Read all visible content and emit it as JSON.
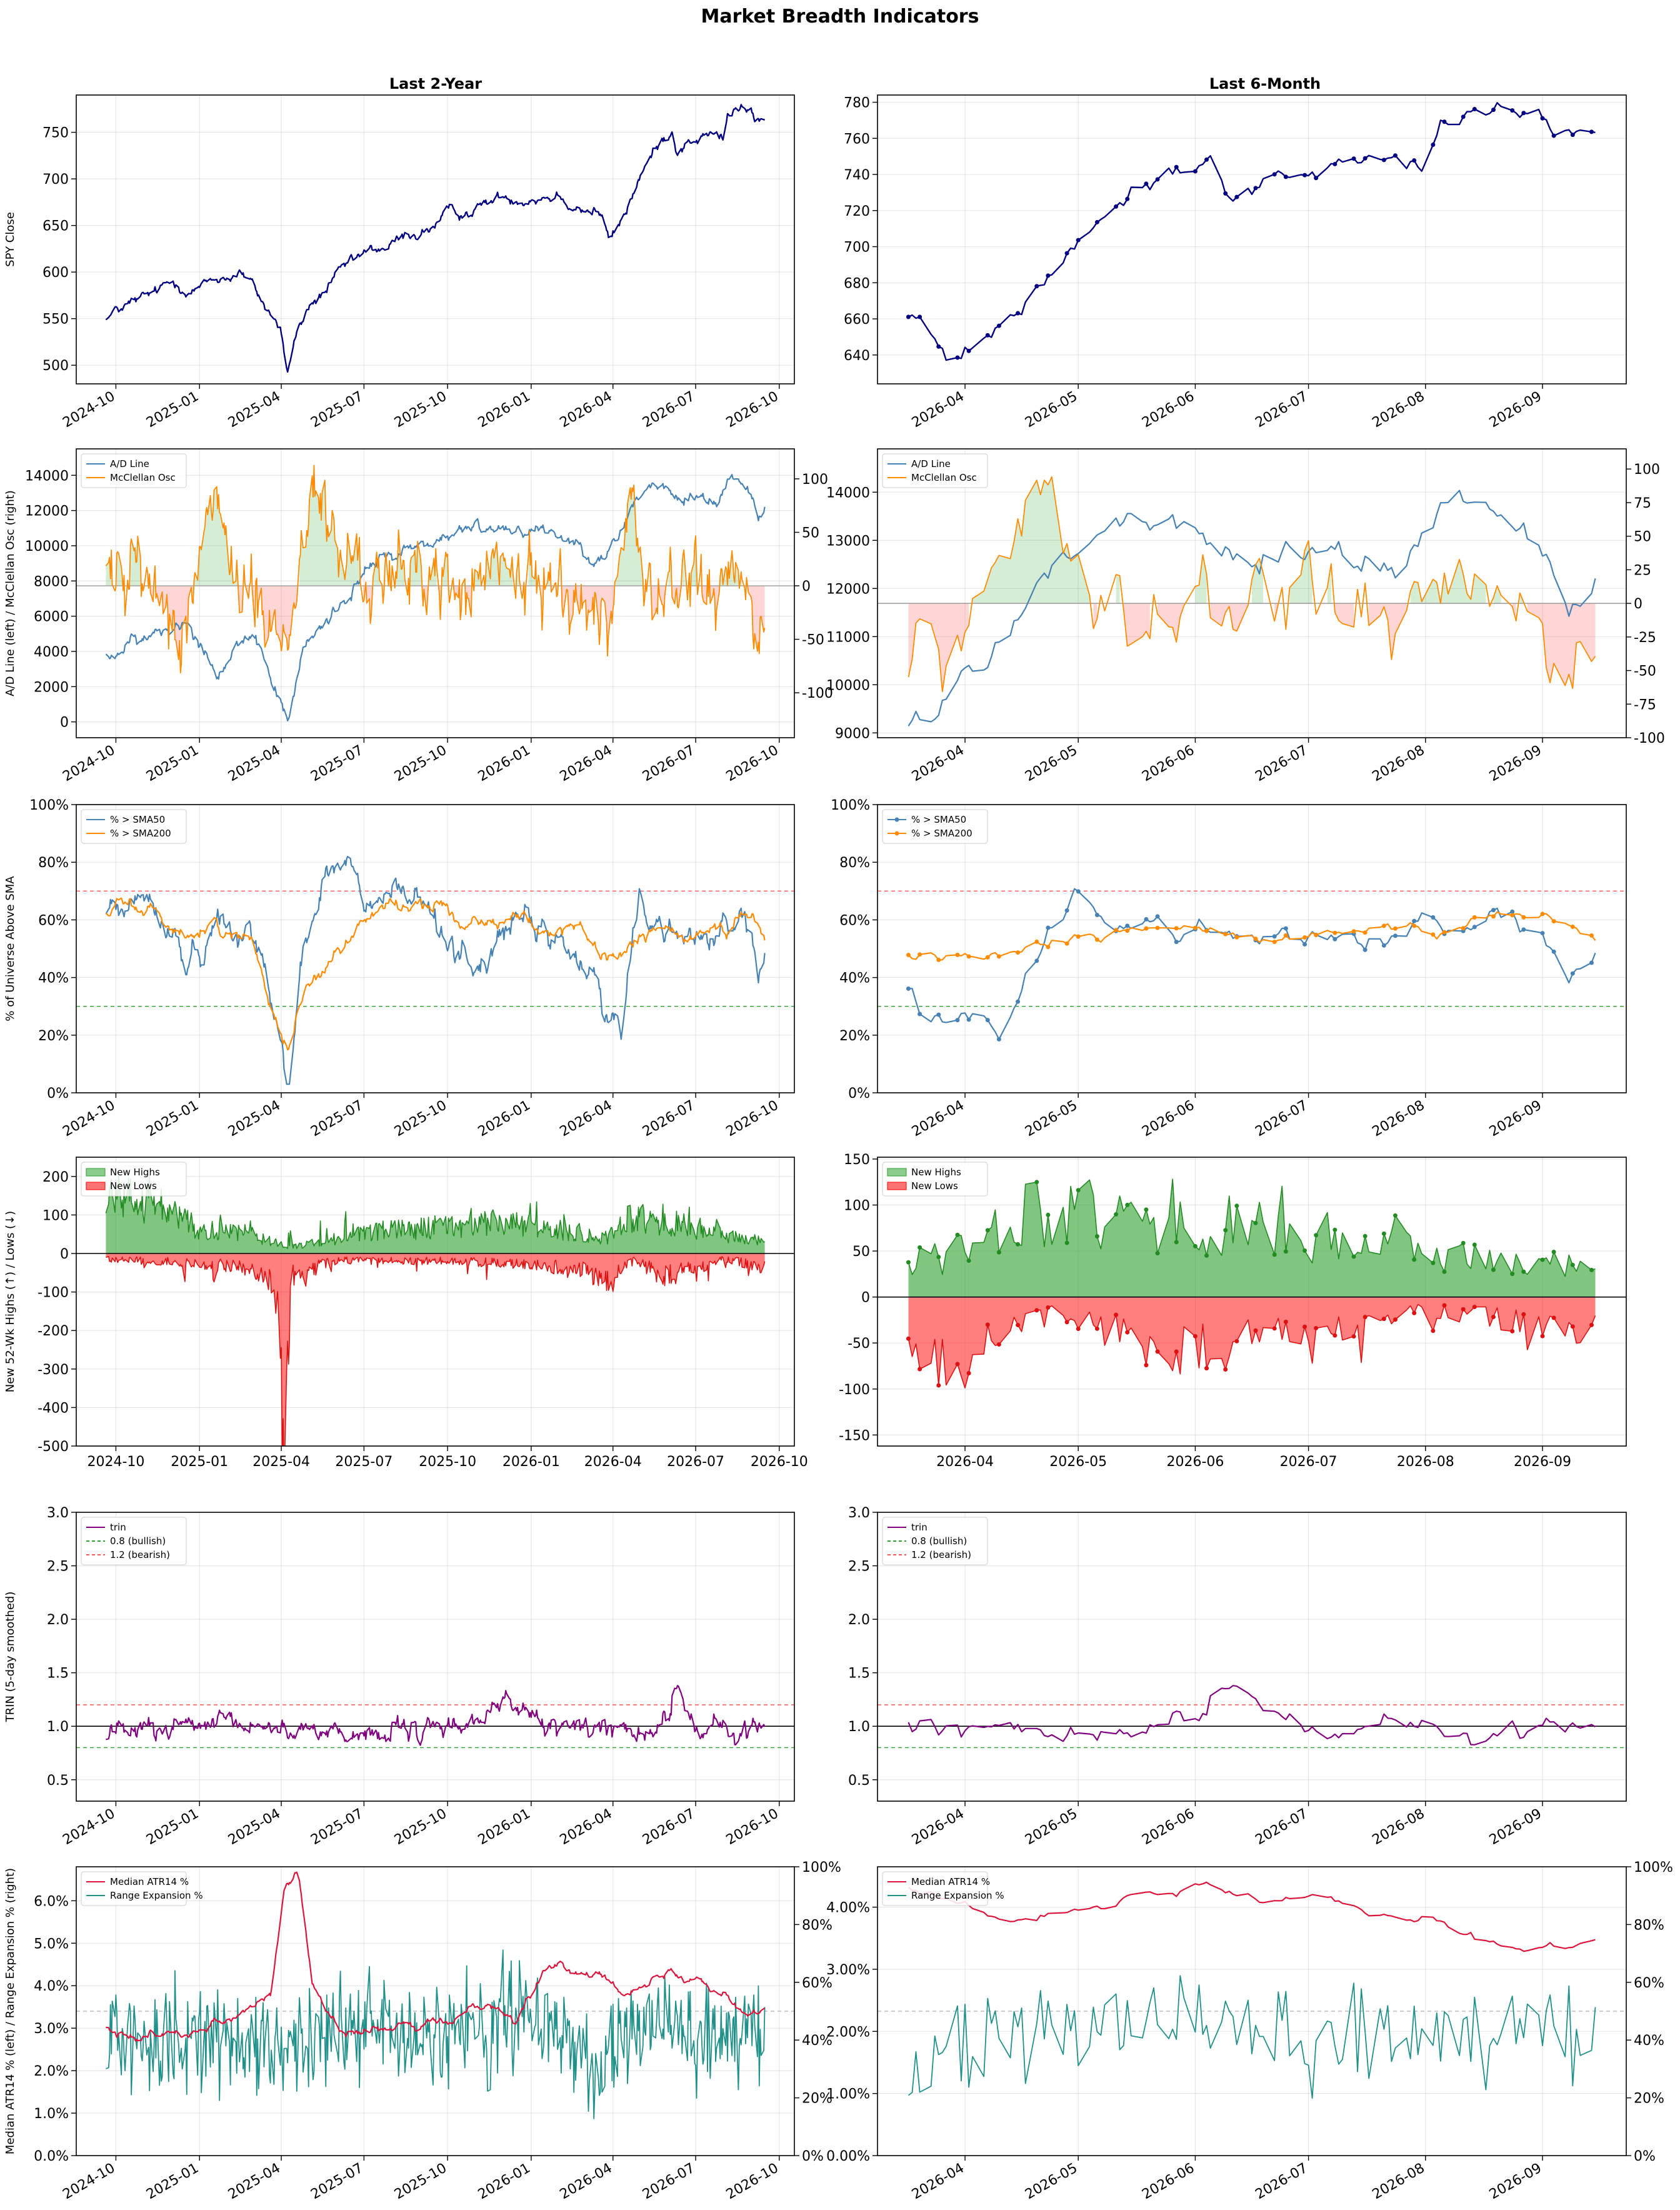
{
  "title": "Market Breadth Indicators",
  "columns": [
    "Last 2-Year",
    "Last 6-Month"
  ],
  "colors": {
    "spy": "#000080",
    "ad_line": "#4682b4",
    "mcclellan": "#ff8c00",
    "pos_fill": "#2ca02c",
    "neg_fill": "#ff0000",
    "sma50": "#4682b4",
    "sma200": "#ff8c00",
    "new_highs": "#228b22",
    "new_lows": "#ff0000",
    "trin": "#800080",
    "atr": "#dc143c",
    "range_exp": "#20908a",
    "ref_green": "#2ca02c",
    "ref_red": "#ff5555"
  },
  "chart_data": [
    {
      "id": "spy",
      "type": "line",
      "ylabel": "SPY Close",
      "yticks_2y": [
        500,
        550,
        600,
        650,
        700,
        750
      ],
      "ylim_2y": [
        480,
        790
      ],
      "yticks_6m": [
        640,
        660,
        680,
        700,
        720,
        740,
        760,
        780
      ],
      "ylim_6m": [
        624,
        784
      ],
      "knots": [
        [
          "2024-09-20",
          553
        ],
        [
          "2024-10-10",
          562
        ],
        [
          "2024-11-05",
          570
        ],
        [
          "2024-12-05",
          588
        ],
        [
          "2025-01-05",
          585
        ],
        [
          "2025-02-15",
          602
        ],
        [
          "2025-03-10",
          568
        ],
        [
          "2025-03-31",
          540
        ],
        [
          "2025-04-08",
          492
        ],
        [
          "2025-04-15",
          525
        ],
        [
          "2025-05-01",
          560
        ],
        [
          "2025-06-01",
          592
        ],
        [
          "2025-07-01",
          615
        ],
        [
          "2025-08-01",
          628
        ],
        [
          "2025-09-01",
          643
        ],
        [
          "2025-10-01",
          658
        ],
        [
          "2025-11-01",
          670
        ],
        [
          "2025-12-01",
          680
        ],
        [
          "2026-01-01",
          685
        ],
        [
          "2026-02-01",
          686
        ],
        [
          "2026-03-01",
          672
        ],
        [
          "2026-03-18",
          665
        ],
        [
          "2026-03-28",
          632
        ],
        [
          "2026-04-10",
          652
        ],
        [
          "2026-04-20",
          675
        ],
        [
          "2026-05-01",
          705
        ],
        [
          "2026-05-15",
          725
        ],
        [
          "2026-06-01",
          750
        ],
        [
          "2026-06-05",
          757
        ],
        [
          "2026-06-10",
          735
        ],
        [
          "2026-07-01",
          745
        ],
        [
          "2026-07-20",
          748
        ],
        [
          "2026-08-01",
          740
        ],
        [
          "2026-08-05",
          765
        ],
        [
          "2026-08-15",
          775
        ],
        [
          "2026-09-01",
          766
        ],
        [
          "2026-09-10",
          762
        ],
        [
          "2026-09-15",
          760
        ]
      ]
    },
    {
      "id": "ad_mcclellan",
      "type": "line",
      "ylabel": "A/D Line (left)  /  McClellan Osc (right)",
      "legend": [
        "A/D Line",
        "McClellan Osc"
      ],
      "yticks_2y_left": [
        0,
        2000,
        4000,
        6000,
        8000,
        10000,
        12000,
        14000
      ],
      "ylim_2y_left": [
        -900,
        15500
      ],
      "yticks_2y_right": [
        -100,
        -50,
        0,
        50,
        100
      ],
      "ylim_2y_right": [
        -142,
        128
      ],
      "yticks_6m_left": [
        9000,
        10000,
        11000,
        12000,
        13000,
        14000
      ],
      "ylim_6m_left": [
        8900,
        14900
      ],
      "yticks_6m_right": [
        -100,
        -75,
        -50,
        -25,
        0,
        25,
        50,
        75,
        100
      ],
      "ylim_6m_right": [
        -100,
        115
      ],
      "ad_knots": [
        [
          "2024-09-20",
          3800
        ],
        [
          "2024-11-01",
          4500
        ],
        [
          "2024-12-20",
          6000
        ],
        [
          "2025-01-20",
          3000
        ],
        [
          "2025-02-20",
          5000
        ],
        [
          "2025-03-20",
          2500
        ],
        [
          "2025-04-08",
          0
        ],
        [
          "2025-04-25",
          4000
        ],
        [
          "2025-06-01",
          6500
        ],
        [
          "2025-07-01",
          8500
        ],
        [
          "2025-08-01",
          9500
        ],
        [
          "2025-10-01",
          10500
        ],
        [
          "2025-12-01",
          11200
        ],
        [
          "2026-01-20",
          11000
        ],
        [
          "2026-03-01",
          10000
        ],
        [
          "2026-03-25",
          9300
        ],
        [
          "2026-04-10",
          10800
        ],
        [
          "2026-04-25",
          12600
        ],
        [
          "2026-05-10",
          13400
        ],
        [
          "2026-06-01",
          13000
        ],
        [
          "2026-06-15",
          12400
        ],
        [
          "2026-07-01",
          12900
        ],
        [
          "2026-07-25",
          12400
        ],
        [
          "2026-08-10",
          14200
        ],
        [
          "2026-08-20",
          13800
        ],
        [
          "2026-09-01",
          13100
        ],
        [
          "2026-09-08",
          11800
        ],
        [
          "2026-09-15",
          11950
        ]
      ],
      "mc_knots": [
        [
          "2024-09-20",
          20
        ],
        [
          "2024-11-01",
          10
        ],
        [
          "2024-12-15",
          -40
        ],
        [
          "2025-01-10",
          70
        ],
        [
          "2025-02-10",
          20
        ],
        [
          "2025-03-10",
          -30
        ],
        [
          "2025-04-10",
          -55
        ],
        [
          "2025-04-25",
          50
        ],
        [
          "2025-05-05",
          95
        ],
        [
          "2025-06-01",
          30
        ],
        [
          "2025-07-01",
          10
        ],
        [
          "2025-08-01",
          0
        ],
        [
          "2025-09-01",
          20
        ],
        [
          "2025-10-15",
          -10
        ],
        [
          "2025-12-01",
          20
        ],
        [
          "2026-01-01",
          -5
        ],
        [
          "2026-02-01",
          10
        ],
        [
          "2026-03-01",
          -20
        ],
        [
          "2026-03-22",
          -45
        ],
        [
          "2026-04-05",
          5
        ],
        [
          "2026-04-20",
          95
        ],
        [
          "2026-05-01",
          30
        ],
        [
          "2026-05-15",
          -30
        ],
        [
          "2026-06-01",
          5
        ],
        [
          "2026-06-15",
          -15
        ],
        [
          "2026-07-01",
          25
        ],
        [
          "2026-07-15",
          -5
        ],
        [
          "2026-07-25",
          -20
        ],
        [
          "2026-08-15",
          15
        ],
        [
          "2026-08-25",
          -5
        ],
        [
          "2026-09-05",
          -50
        ],
        [
          "2026-09-15",
          -45
        ]
      ]
    },
    {
      "id": "pct_above_sma",
      "type": "line",
      "ylabel": "% of Universe Above SMA",
      "legend": [
        "% > SMA50",
        "% > SMA200"
      ],
      "yticks": [
        0,
        20,
        40,
        60,
        80,
        100
      ],
      "ylim": [
        0,
        100
      ],
      "ref_lines": [
        70,
        30
      ],
      "sma50_knots": [
        [
          "2024-09-20",
          62
        ],
        [
          "2024-10-20",
          68
        ],
        [
          "2024-11-20",
          62
        ],
        [
          "2024-12-20",
          45
        ],
        [
          "2025-01-20",
          60
        ],
        [
          "2025-02-20",
          62
        ],
        [
          "2025-03-15",
          40
        ],
        [
          "2025-04-08",
          5
        ],
        [
          "2025-04-25",
          50
        ],
        [
          "2025-05-20",
          75
        ],
        [
          "2025-06-15",
          80
        ],
        [
          "2025-07-01",
          63
        ],
        [
          "2025-08-01",
          68
        ],
        [
          "2025-09-01",
          65
        ],
        [
          "2025-10-01",
          55
        ],
        [
          "2025-11-15",
          45
        ],
        [
          "2025-12-01",
          60
        ],
        [
          "2026-01-01",
          55
        ],
        [
          "2026-02-01",
          52
        ],
        [
          "2026-03-10",
          40
        ],
        [
          "2026-03-22",
          25
        ],
        [
          "2026-04-10",
          28
        ],
        [
          "2026-04-25",
          60
        ],
        [
          "2026-05-01",
          68
        ],
        [
          "2026-05-15",
          58
        ],
        [
          "2026-06-01",
          58
        ],
        [
          "2026-06-15",
          52
        ],
        [
          "2026-07-01",
          56
        ],
        [
          "2026-07-20",
          57
        ],
        [
          "2026-08-01",
          60
        ],
        [
          "2026-08-15",
          63
        ],
        [
          "2026-09-01",
          55
        ],
        [
          "2026-09-08",
          40
        ],
        [
          "2026-09-15",
          40
        ]
      ],
      "sma200_knots": [
        [
          "2024-09-20",
          63
        ],
        [
          "2024-11-01",
          65
        ],
        [
          "2024-12-20",
          55
        ],
        [
          "2025-02-01",
          58
        ],
        [
          "2025-03-01",
          50
        ],
        [
          "2025-04-08",
          18
        ],
        [
          "2025-05-01",
          40
        ],
        [
          "2025-06-01",
          50
        ],
        [
          "2025-07-01",
          60
        ],
        [
          "2025-08-01",
          66
        ],
        [
          "2025-09-15",
          65
        ],
        [
          "2025-11-01",
          60
        ],
        [
          "2025-12-01",
          63
        ],
        [
          "2026-01-15",
          58
        ],
        [
          "2026-03-01",
          52
        ],
        [
          "2026-03-22",
          44
        ],
        [
          "2026-04-25",
          52
        ],
        [
          "2026-05-15",
          56
        ],
        [
          "2026-06-15",
          53
        ],
        [
          "2026-07-15",
          57
        ],
        [
          "2026-08-15",
          63
        ],
        [
          "2026-09-01",
          60
        ],
        [
          "2026-09-15",
          53
        ]
      ]
    },
    {
      "id": "new_highs_lows",
      "type": "area",
      "ylabel": "New 52-Wk Highs (↑) / Lows (↓)",
      "legend": [
        "New Highs",
        "New Lows"
      ],
      "yticks_2y": [
        -500,
        -400,
        -300,
        -200,
        -100,
        0,
        100,
        200
      ],
      "ylim_2y": [
        -500,
        250
      ],
      "yticks_6m": [
        -150,
        -100,
        -50,
        0,
        50,
        100,
        150
      ],
      "ylim_6m": [
        -162,
        152
      ],
      "highs_knots": [
        [
          "2024-09-20",
          150
        ],
        [
          "2024-11-15",
          130
        ],
        [
          "2025-01-01",
          60
        ],
        [
          "2025-03-01",
          50
        ],
        [
          "2025-04-08",
          15
        ],
        [
          "2025-06-01",
          40
        ],
        [
          "2025-08-01",
          60
        ],
        [
          "2025-10-01",
          70
        ],
        [
          "2025-12-01",
          80
        ],
        [
          "2026-02-01",
          60
        ],
        [
          "2026-03-25",
          40
        ],
        [
          "2026-04-20",
          100
        ],
        [
          "2026-05-20",
          80
        ],
        [
          "2026-06-20",
          75
        ],
        [
          "2026-07-20",
          55
        ],
        [
          "2026-08-20",
          40
        ],
        [
          "2026-09-15",
          30
        ]
      ],
      "lows_knots": [
        [
          "2024-09-20",
          -15
        ],
        [
          "2024-12-15",
          -25
        ],
        [
          "2025-02-15",
          -35
        ],
        [
          "2025-03-25",
          -90
        ],
        [
          "2025-04-04",
          -470
        ],
        [
          "2025-04-12",
          -60
        ],
        [
          "2025-06-01",
          -20
        ],
        [
          "2025-09-01",
          -20
        ],
        [
          "2025-12-01",
          -25
        ],
        [
          "2026-03-01",
          -45
        ],
        [
          "2026-03-28",
          -80
        ],
        [
          "2026-04-20",
          -15
        ],
        [
          "2026-05-25",
          -60
        ],
        [
          "2026-06-25",
          -50
        ],
        [
          "2026-08-01",
          -15
        ],
        [
          "2026-09-15",
          -40
        ]
      ]
    },
    {
      "id": "trin",
      "type": "line",
      "ylabel": "TRIN  (5-day smoothed)",
      "legend": [
        "trin",
        "0.8 (bullish)",
        "1.2 (bearish)"
      ],
      "yticks": [
        0.5,
        1.0,
        1.5,
        2.0,
        2.5,
        3.0
      ],
      "ylim": [
        0.3,
        3.0
      ],
      "ref_lines": [
        1.0,
        0.8,
        1.2
      ],
      "knots": [
        [
          "2024-09-20",
          0.95
        ],
        [
          "2024-12-15",
          0.98
        ],
        [
          "2025-03-01",
          1.0
        ],
        [
          "2025-06-01",
          0.95
        ],
        [
          "2025-09-01",
          0.92
        ],
        [
          "2025-11-15",
          1.1
        ],
        [
          "2025-12-01",
          1.3
        ],
        [
          "2026-01-15",
          0.98
        ],
        [
          "2026-03-20",
          1.0
        ],
        [
          "2026-04-20",
          0.92
        ],
        [
          "2026-05-20",
          0.98
        ],
        [
          "2026-06-01",
          1.05
        ],
        [
          "2026-06-05",
          1.25
        ],
        [
          "2026-06-12",
          1.4
        ],
        [
          "2026-06-20",
          1.1
        ],
        [
          "2026-07-15",
          0.95
        ],
        [
          "2026-07-25",
          1.05
        ],
        [
          "2026-08-05",
          0.88
        ],
        [
          "2026-08-25",
          0.98
        ],
        [
          "2026-09-15",
          0.97
        ]
      ]
    },
    {
      "id": "atr_range",
      "type": "line",
      "ylabel": "Median ATR14 % (left)  /  Range Expansion % (right)",
      "legend": [
        "Median ATR14 %",
        "Range Expansion %"
      ],
      "yticks_2y_left": [
        "0.0%",
        "1.0%",
        "2.0%",
        "3.0%",
        "4.0%",
        "5.0%",
        "6.0%"
      ],
      "ylim_2y_left": [
        0,
        6.8
      ],
      "yticks_6m_left": [
        "0.00%",
        "1.00%",
        "2.00%",
        "3.00%",
        "4.00%"
      ],
      "ylim_6m_left": [
        0,
        4.65
      ],
      "yticks_right": [
        "0%",
        "20%",
        "40%",
        "60%",
        "80%",
        "100%"
      ],
      "ylim_right": [
        0,
        100
      ],
      "ref_line_right": 50,
      "atr_knots": [
        [
          "2024-09-20",
          3.0
        ],
        [
          "2024-11-15",
          2.9
        ],
        [
          "2025-01-01",
          3.1
        ],
        [
          "2025-02-15",
          3.4
        ],
        [
          "2025-03-20",
          3.9
        ],
        [
          "2025-04-05",
          6.3
        ],
        [
          "2025-04-20",
          6.6
        ],
        [
          "2025-05-05",
          4.0
        ],
        [
          "2025-06-01",
          3.0
        ],
        [
          "2025-08-01",
          2.9
        ],
        [
          "2025-10-01",
          3.1
        ],
        [
          "2025-11-15",
          3.8
        ],
        [
          "2025-12-15",
          3.2
        ],
        [
          "2026-01-15",
          4.4
        ],
        [
          "2026-03-01",
          4.3
        ],
        [
          "2026-03-25",
          4.4
        ],
        [
          "2026-04-10",
          4.1
        ],
        [
          "2026-05-01",
          3.9
        ],
        [
          "2026-06-01",
          4.3
        ],
        [
          "2026-07-01",
          4.3
        ],
        [
          "2026-08-01",
          4.0
        ],
        [
          "2026-08-20",
          3.5
        ],
        [
          "2026-09-01",
          3.45
        ],
        [
          "2026-09-15",
          3.5
        ]
      ],
      "range_knots": [
        [
          "2024-09-20",
          40
        ],
        [
          "2025-01-01",
          42
        ],
        [
          "2025-04-01",
          35
        ],
        [
          "2025-07-01",
          45
        ],
        [
          "2025-10-01",
          40
        ],
        [
          "2026-01-01",
          48
        ],
        [
          "2026-03-20",
          30
        ],
        [
          "2026-04-01",
          45
        ],
        [
          "2026-06-01",
          48
        ],
        [
          "2026-07-01",
          40
        ],
        [
          "2026-08-01",
          45
        ],
        [
          "2026-09-15",
          45
        ]
      ]
    }
  ],
  "xticks_2y": [
    "2024-10",
    "2025-01",
    "2025-04",
    "2025-07",
    "2025-10",
    "2026-01",
    "2026-04",
    "2026-07",
    "2026-10"
  ],
  "xticks_6m": [
    "2026-04",
    "2026-05",
    "2026-06",
    "2026-07",
    "2026-08",
    "2026-09"
  ],
  "range_2y": [
    "2024-09-20",
    "2026-09-15"
  ],
  "range_6m": [
    "2026-03-17",
    "2026-09-15"
  ]
}
